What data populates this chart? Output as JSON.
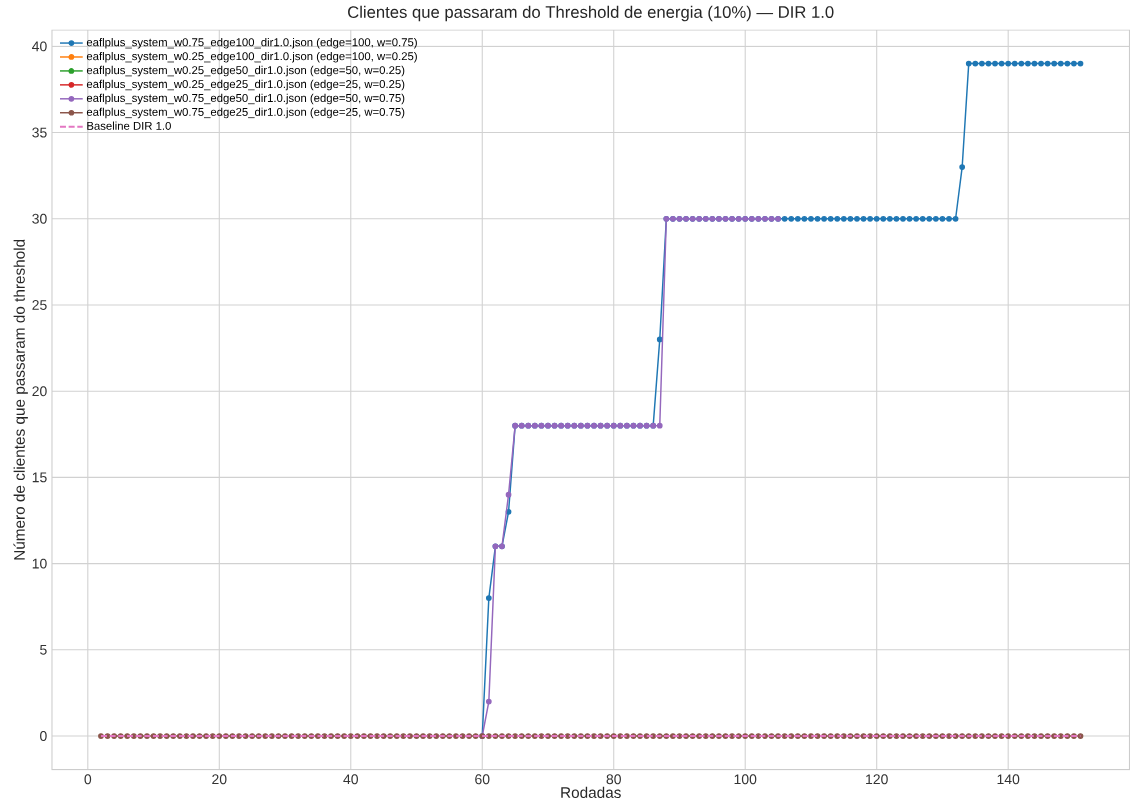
{
  "chart_data": {
    "type": "line",
    "title": "Clientes que passaram do Threshold de energia (10%) — DIR 1.0",
    "xlabel": "Rodadas",
    "ylabel": "Número de clientes que passaram do threshold",
    "x": [
      2,
      3,
      4,
      5,
      6,
      7,
      8,
      9,
      10,
      11,
      12,
      13,
      14,
      15,
      16,
      17,
      18,
      19,
      20,
      21,
      22,
      23,
      24,
      25,
      26,
      27,
      28,
      29,
      30,
      31,
      32,
      33,
      34,
      35,
      36,
      37,
      38,
      39,
      40,
      41,
      42,
      43,
      44,
      45,
      46,
      47,
      48,
      49,
      50,
      51,
      52,
      53,
      54,
      55,
      56,
      57,
      58,
      59,
      60,
      61,
      62,
      63,
      64,
      65,
      66,
      67,
      68,
      69,
      70,
      71,
      72,
      73,
      74,
      75,
      76,
      77,
      78,
      79,
      80,
      81,
      82,
      83,
      84,
      85,
      86,
      87,
      88,
      89,
      90,
      91,
      92,
      93,
      94,
      95,
      96,
      97,
      98,
      99,
      100,
      101,
      102,
      103,
      104,
      105,
      106,
      107,
      108,
      109,
      110,
      111,
      112,
      113,
      114,
      115,
      116,
      117,
      118,
      119,
      120,
      121,
      122,
      123,
      124,
      125,
      126,
      127,
      128,
      129,
      130,
      131,
      132,
      133,
      134,
      135,
      136,
      137,
      138,
      139,
      140,
      141,
      142,
      143,
      144,
      145,
      146,
      147,
      148,
      149,
      150,
      151
    ],
    "series": [
      {
        "name": "eaflplus_system_w0.75_edge100_dir1.0.json (edge=100, w=0.75)",
        "color": "#1f77b4",
        "values": [
          null,
          null,
          null,
          null,
          null,
          null,
          null,
          null,
          null,
          null,
          null,
          null,
          null,
          null,
          null,
          null,
          null,
          null,
          null,
          null,
          null,
          null,
          null,
          null,
          null,
          null,
          null,
          null,
          null,
          null,
          null,
          null,
          null,
          null,
          null,
          null,
          null,
          null,
          null,
          null,
          null,
          null,
          null,
          null,
          null,
          null,
          null,
          null,
          null,
          null,
          null,
          null,
          null,
          null,
          null,
          null,
          null,
          null,
          0,
          8,
          11,
          11,
          13,
          18,
          18,
          18,
          18,
          18,
          18,
          18,
          18,
          18,
          18,
          18,
          18,
          18,
          18,
          18,
          18,
          18,
          18,
          18,
          18,
          18,
          18,
          23,
          30,
          30,
          30,
          30,
          30,
          30,
          30,
          30,
          30,
          30,
          30,
          30,
          30,
          30,
          30,
          30,
          30,
          30,
          30,
          30,
          30,
          30,
          30,
          30,
          30,
          30,
          30,
          30,
          30,
          30,
          30,
          30,
          30,
          30,
          30,
          30,
          30,
          30,
          30,
          30,
          30,
          30,
          30,
          30,
          30,
          33,
          39,
          39,
          39,
          39,
          39,
          39,
          39,
          39,
          39,
          39,
          39,
          39,
          39,
          39,
          39,
          39,
          39,
          39
        ]
      },
      {
        "name": "eaflplus_system_w0.25_edge100_dir1.0.json (edge=100, w=0.25)",
        "color": "#ff7f0e",
        "values": [
          null,
          null,
          null,
          null,
          null,
          null,
          null,
          null,
          null,
          null,
          null,
          null,
          null,
          null,
          null,
          null,
          null,
          null,
          null,
          null,
          null,
          null,
          null,
          null,
          null,
          null,
          null,
          null,
          null,
          null,
          null,
          null,
          null,
          null,
          null,
          null,
          null,
          null,
          null,
          null,
          null,
          null,
          null,
          null,
          null,
          null,
          null,
          null,
          null,
          null,
          null,
          null,
          null,
          null,
          null,
          null,
          null,
          null,
          null,
          null,
          null,
          null,
          null,
          null,
          null,
          null,
          null,
          null,
          null,
          null,
          null,
          null,
          null,
          null,
          null,
          null,
          null,
          null,
          null,
          null,
          null,
          null,
          null,
          null,
          null,
          null,
          null,
          null,
          null,
          null,
          null,
          null,
          null,
          null,
          null,
          null,
          null,
          null,
          null,
          null,
          null,
          null,
          null,
          null,
          null,
          null,
          null,
          null,
          null,
          null,
          null,
          null,
          null,
          null,
          null,
          null,
          null,
          null,
          null,
          null,
          null,
          null,
          null,
          null,
          null,
          null,
          null,
          null,
          null,
          null,
          null,
          null,
          null,
          null,
          null,
          null,
          null,
          null,
          null,
          null,
          null,
          null,
          null,
          null,
          null,
          null,
          null,
          null,
          null,
          null
        ]
      },
      {
        "name": "eaflplus_system_w0.25_edge50_dir1.0.json (edge=50, w=0.25)",
        "color": "#2ca02c",
        "values": [
          null,
          null,
          null,
          null,
          null,
          null,
          null,
          null,
          null,
          null,
          null,
          null,
          null,
          null,
          null,
          null,
          null,
          null,
          null,
          null,
          null,
          null,
          null,
          null,
          null,
          null,
          null,
          null,
          null,
          null,
          null,
          null,
          null,
          null,
          null,
          null,
          null,
          null,
          null,
          null,
          null,
          null,
          null,
          null,
          null,
          null,
          null,
          null,
          null,
          null,
          null,
          null,
          null,
          null,
          null,
          null,
          null,
          null,
          null,
          null,
          null,
          null,
          null,
          null,
          null,
          null,
          null,
          null,
          null,
          null,
          null,
          null,
          null,
          null,
          null,
          null,
          null,
          null,
          null,
          null,
          null,
          null,
          null,
          null,
          null,
          null,
          null,
          null,
          null,
          null,
          null,
          null,
          null,
          null,
          null,
          null,
          null,
          null,
          null,
          null,
          null,
          null,
          null,
          null,
          null,
          null,
          null,
          null,
          null,
          null,
          null,
          null,
          null,
          null,
          null,
          null,
          null,
          null,
          null,
          null,
          null,
          null,
          null,
          null,
          null,
          null,
          null,
          null,
          null,
          null,
          null,
          null,
          null,
          null,
          null,
          null,
          null,
          null,
          null,
          null,
          null,
          null,
          null,
          null,
          null,
          null,
          null,
          null,
          null,
          null
        ]
      },
      {
        "name": "eaflplus_system_w0.25_edge25_dir1.0.json (edge=25, w=0.25)",
        "color": "#d62728",
        "values": [
          null,
          null,
          null,
          null,
          null,
          null,
          null,
          null,
          null,
          null,
          null,
          null,
          null,
          null,
          null,
          null,
          null,
          null,
          null,
          null,
          null,
          null,
          null,
          null,
          null,
          null,
          null,
          null,
          null,
          null,
          null,
          null,
          null,
          null,
          null,
          null,
          null,
          null,
          null,
          null,
          null,
          null,
          null,
          null,
          null,
          null,
          null,
          null,
          null,
          null,
          null,
          null,
          null,
          null,
          null,
          null,
          null,
          null,
          null,
          null,
          null,
          null,
          null,
          null,
          null,
          null,
          null,
          null,
          null,
          null,
          null,
          null,
          null,
          null,
          null,
          null,
          null,
          null,
          null,
          null,
          null,
          null,
          null,
          null,
          null,
          null,
          null,
          null,
          null,
          null,
          null,
          null,
          null,
          null,
          null,
          null,
          null,
          null,
          null,
          null,
          null,
          null,
          null,
          null,
          null,
          null,
          null,
          null,
          null,
          null,
          null,
          null,
          null,
          null,
          null,
          null,
          null,
          null,
          null,
          null,
          null,
          null,
          null,
          null,
          null,
          null,
          null,
          null,
          null,
          null,
          null,
          null,
          null,
          null,
          null,
          null,
          null,
          null,
          null,
          null,
          null,
          null,
          null,
          null,
          null,
          null,
          null,
          null,
          null,
          null
        ]
      },
      {
        "name": "eaflplus_system_w0.75_edge50_dir1.0.json (edge=50, w=0.75)",
        "color": "#9467bd",
        "x": [
          60,
          61,
          62,
          63,
          64,
          65,
          66,
          67,
          68,
          69,
          70,
          71,
          72,
          73,
          74,
          75,
          76,
          77,
          78,
          79,
          80,
          81,
          82,
          83,
          84,
          85,
          86,
          87,
          88,
          89,
          90,
          91,
          92,
          93,
          94,
          95,
          96,
          97,
          98,
          99,
          100,
          101,
          102,
          103,
          104,
          105
        ],
        "values": [
          0,
          2,
          11,
          11,
          14,
          18,
          18,
          18,
          18,
          18,
          18,
          18,
          18,
          18,
          18,
          18,
          18,
          18,
          18,
          18,
          18,
          18,
          18,
          18,
          18,
          18,
          18,
          18,
          30,
          30,
          30,
          30,
          30,
          30,
          30,
          30,
          30,
          30,
          30,
          30,
          30,
          30,
          30,
          30,
          30,
          30
        ]
      },
      {
        "name": "eaflplus_system_w0.75_edge25_dir1.0.json (edge=25, w=0.75)",
        "color": "#8c564b",
        "values": [
          0,
          0,
          0,
          0,
          0,
          0,
          0,
          0,
          0,
          0,
          0,
          0,
          0,
          0,
          0,
          0,
          0,
          0,
          0,
          0,
          0,
          0,
          0,
          0,
          0,
          0,
          0,
          0,
          0,
          0,
          0,
          0,
          0,
          0,
          0,
          0,
          0,
          0,
          0,
          0,
          0,
          0,
          0,
          0,
          0,
          0,
          0,
          0,
          0,
          0,
          0,
          0,
          0,
          0,
          0,
          0,
          0,
          0,
          0,
          0,
          0,
          0,
          0,
          0,
          0,
          0,
          0,
          0,
          0,
          0,
          0,
          0,
          0,
          0,
          0,
          0,
          0,
          0,
          0,
          0,
          0,
          0,
          0,
          0,
          0,
          0,
          0,
          0,
          0,
          0,
          0,
          0,
          0,
          0,
          0,
          0,
          0,
          0,
          0,
          0,
          0,
          0,
          0,
          0,
          0,
          0,
          0,
          0,
          0,
          0,
          0,
          0,
          0,
          0,
          0,
          0,
          0,
          0,
          0,
          0,
          0,
          0,
          0,
          0,
          0,
          0,
          0,
          0,
          0,
          0,
          0,
          0,
          0,
          0,
          0,
          0,
          0,
          0,
          0,
          0,
          0,
          0,
          0,
          0,
          0,
          0,
          0,
          0,
          0,
          0
        ]
      },
      {
        "name": "Baseline DIR 1.0",
        "color": "#e377c2",
        "marker": "none",
        "line_style": "dashed",
        "values": [
          0,
          0,
          0,
          0,
          0,
          0,
          0,
          0,
          0,
          0,
          0,
          0,
          0,
          0,
          0,
          0,
          0,
          0,
          0,
          0,
          0,
          0,
          0,
          0,
          0,
          0,
          0,
          0,
          0,
          0,
          0,
          0,
          0,
          0,
          0,
          0,
          0,
          0,
          0,
          0,
          0,
          0,
          0,
          0,
          0,
          0,
          0,
          0,
          0,
          0,
          0,
          0,
          0,
          0,
          0,
          0,
          0,
          0,
          0,
          0,
          0,
          0,
          0,
          0,
          0,
          0,
          0,
          0,
          0,
          0,
          0,
          0,
          0,
          0,
          0,
          0,
          0,
          0,
          0,
          0,
          0,
          0,
          0,
          0,
          0,
          0,
          0,
          0,
          0,
          0,
          0,
          0,
          0,
          0,
          0,
          0,
          0,
          0,
          0,
          0,
          0,
          0,
          0,
          0,
          0,
          0,
          0,
          0,
          0,
          0,
          0,
          0,
          0,
          0,
          0,
          0,
          0,
          0,
          0,
          0,
          0,
          0,
          0,
          0,
          0,
          0,
          0,
          0,
          0,
          0,
          0,
          0,
          0,
          0,
          0,
          0,
          0,
          0,
          0,
          0,
          0,
          0,
          0,
          0,
          0,
          0,
          0,
          0,
          0,
          0
        ]
      }
    ],
    "xlim": [
      -5.45,
      158.45
    ],
    "ylim": [
      -1.95,
      40.95
    ],
    "xticks": [
      0,
      20,
      40,
      60,
      80,
      100,
      120,
      140
    ],
    "yticks": [
      0,
      5,
      10,
      15,
      20,
      25,
      30,
      35,
      40
    ],
    "grid": true,
    "legend": "top left",
    "marker": "circle",
    "line_style": "solid"
  }
}
